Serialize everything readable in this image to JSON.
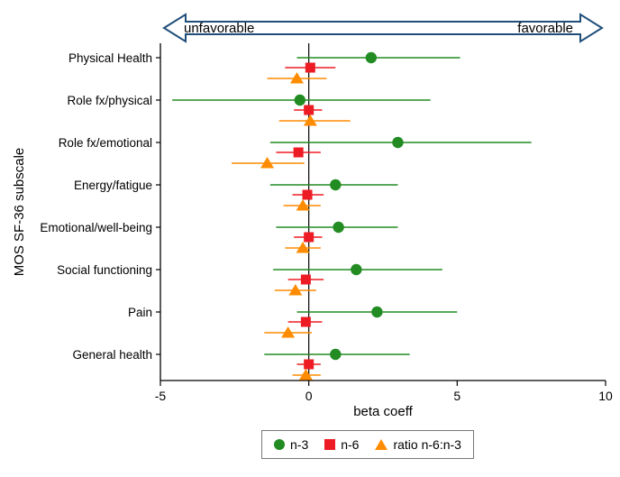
{
  "arrow": {
    "left_label": "unfavorable",
    "right_label": "favorable",
    "outline_color": "#1F4E79"
  },
  "chart_data": {
    "type": "scatter",
    "title": "",
    "xlabel": "beta coeff",
    "ylabel": "MOS SF-36 subscale",
    "xlim": [
      -5,
      10
    ],
    "xticks": [
      -5,
      0,
      5,
      10
    ],
    "zero_line": 0,
    "grid": false,
    "legend_position": "bottom",
    "categories": [
      "Physical Health",
      "Role fx/physical",
      "Role fx/emotional",
      "Energy/fatigue",
      "Emotional/well-being",
      "Social functioning",
      "Pain",
      "General health"
    ],
    "series": [
      {
        "name": "n-3",
        "marker": "circle",
        "color": "#228B22",
        "points": [
          {
            "est": 2.1,
            "lo": -0.4,
            "hi": 5.1
          },
          {
            "est": -0.3,
            "lo": -4.6,
            "hi": 4.1
          },
          {
            "est": 3.0,
            "lo": -1.3,
            "hi": 7.5
          },
          {
            "est": 0.9,
            "lo": -1.3,
            "hi": 3.0
          },
          {
            "est": 1.0,
            "lo": -1.1,
            "hi": 3.0
          },
          {
            "est": 1.6,
            "lo": -1.2,
            "hi": 4.5
          },
          {
            "est": 2.3,
            "lo": -0.4,
            "hi": 5.0
          },
          {
            "est": 0.9,
            "lo": -1.5,
            "hi": 3.4
          }
        ]
      },
      {
        "name": "n-6",
        "marker": "square",
        "color": "#ED1C24",
        "points": [
          {
            "est": 0.05,
            "lo": -0.8,
            "hi": 0.9
          },
          {
            "est": 0.0,
            "lo": -0.5,
            "hi": 0.45
          },
          {
            "est": -0.35,
            "lo": -1.1,
            "hi": 0.4
          },
          {
            "est": -0.05,
            "lo": -0.55,
            "hi": 0.5
          },
          {
            "est": 0.0,
            "lo": -0.5,
            "hi": 0.45
          },
          {
            "est": -0.1,
            "lo": -0.7,
            "hi": 0.5
          },
          {
            "est": -0.1,
            "lo": -0.7,
            "hi": 0.45
          },
          {
            "est": 0.0,
            "lo": -0.4,
            "hi": 0.4
          }
        ]
      },
      {
        "name": "ratio n-6:n-3",
        "marker": "triangle",
        "color": "#FF8C00",
        "points": [
          {
            "est": -0.4,
            "lo": -1.4,
            "hi": 0.6
          },
          {
            "est": 0.05,
            "lo": -1.0,
            "hi": 1.4
          },
          {
            "est": -1.4,
            "lo": -2.6,
            "hi": -0.15
          },
          {
            "est": -0.2,
            "lo": -0.85,
            "hi": 0.4
          },
          {
            "est": -0.2,
            "lo": -0.8,
            "hi": 0.4
          },
          {
            "est": -0.45,
            "lo": -1.15,
            "hi": 0.25
          },
          {
            "est": -0.7,
            "lo": -1.5,
            "hi": 0.1
          },
          {
            "est": -0.1,
            "lo": -0.55,
            "hi": 0.4
          }
        ]
      }
    ]
  }
}
